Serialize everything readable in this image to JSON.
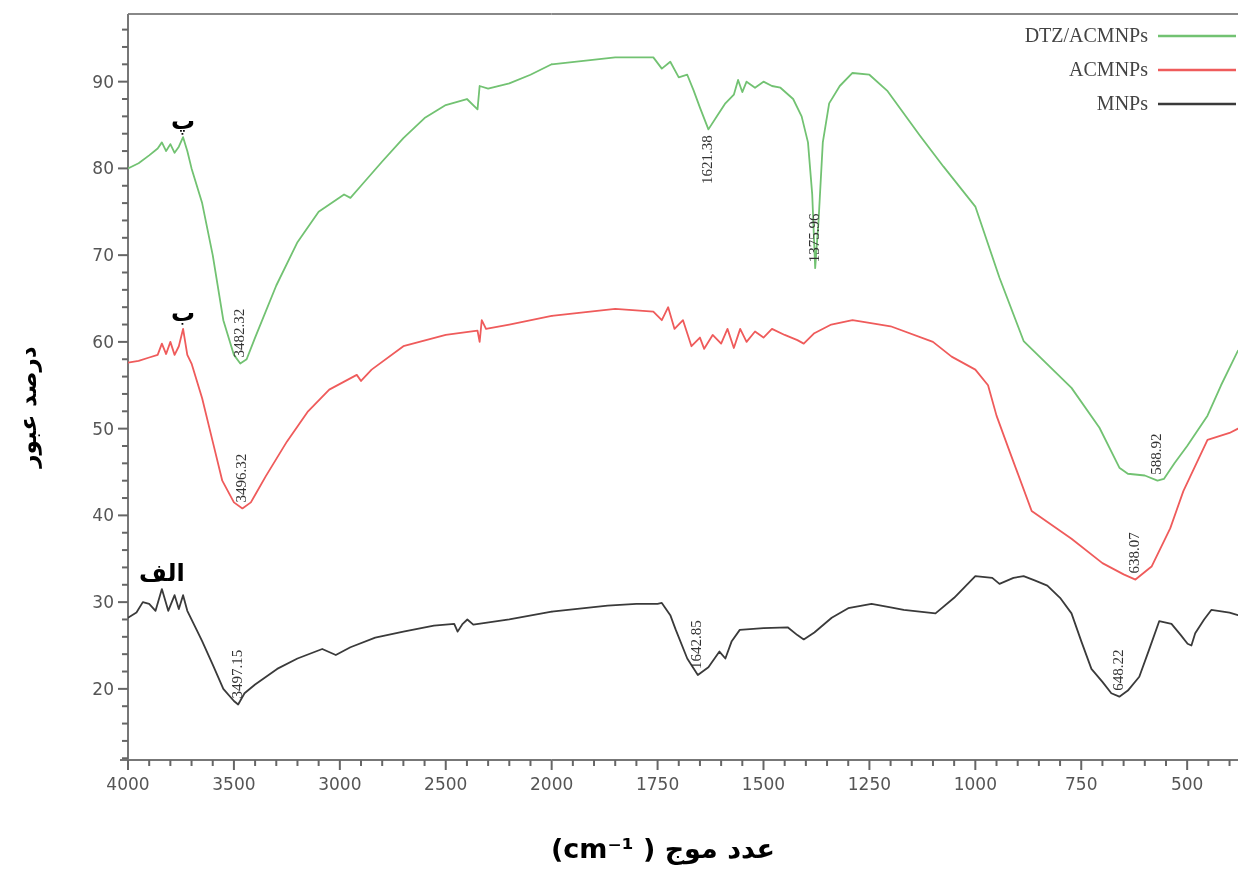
{
  "chart_data": [
    {
      "type": "line",
      "ylabel": "درصد عبور",
      "xlim": [
        4000,
        2000
      ],
      "ylim": [
        11.8,
        97.8
      ],
      "xticks": [
        4000,
        {
          "value": 3900,
          "label": null
        },
        {
          "value": 3800,
          "label": null
        },
        {
          "value": 3700,
          "label": null
        },
        {
          "value": 3600,
          "label": null
        },
        3500,
        {
          "value": 3400,
          "label": null
        },
        {
          "value": 3300,
          "label": null
        },
        {
          "value": 3200,
          "label": null
        },
        {
          "value": 3100,
          "label": null
        },
        3000,
        {
          "value": 2900,
          "label": null
        },
        {
          "value": 2800,
          "label": null
        },
        {
          "value": 2700,
          "label": null
        },
        {
          "value": 2600,
          "label": null
        },
        2500,
        {
          "value": 2400,
          "label": null
        },
        {
          "value": 2300,
          "label": null
        },
        {
          "value": 2200,
          "label": null
        },
        {
          "value": 2100,
          "label": null
        },
        2000
      ],
      "yticks": [
        {
          "value": 12,
          "label": null
        },
        {
          "value": 14,
          "label": null
        },
        {
          "value": 16,
          "label": null
        },
        {
          "value": 18,
          "label": null
        },
        20,
        {
          "value": 22,
          "label": null
        },
        {
          "value": 24,
          "label": null
        },
        {
          "value": 26,
          "label": null
        },
        {
          "value": 28,
          "label": null
        },
        30,
        {
          "value": 32,
          "label": null
        },
        {
          "value": 34,
          "label": null
        },
        {
          "value": 36,
          "label": null
        },
        {
          "value": 38,
          "label": null
        },
        40,
        {
          "value": 42,
          "label": null
        },
        {
          "value": 44,
          "label": null
        },
        {
          "value": 46,
          "label": null
        },
        {
          "value": 48,
          "label": null
        },
        50,
        {
          "value": 52,
          "label": null
        },
        {
          "value": 54,
          "label": null
        },
        {
          "value": 56,
          "label": null
        },
        {
          "value": 58,
          "label": null
        },
        60,
        {
          "value": 62,
          "label": null
        },
        {
          "value": 64,
          "label": null
        },
        {
          "value": 66,
          "label": null
        },
        {
          "value": 68,
          "label": null
        },
        70,
        {
          "value": 72,
          "label": null
        },
        {
          "value": 74,
          "label": null
        },
        {
          "value": 76,
          "label": null
        },
        {
          "value": 78,
          "label": null
        },
        80,
        {
          "value": 82,
          "label": null
        },
        {
          "value": 84,
          "label": null
        },
        {
          "value": 86,
          "label": null
        },
        {
          "value": 88,
          "label": null
        },
        90,
        {
          "value": 92,
          "label": null
        },
        {
          "value": 94,
          "label": null
        },
        {
          "value": 96,
          "label": null
        }
      ],
      "grid": false,
      "marker": "none",
      "line_style": "solid",
      "series": [
        {
          "color": "#72c272",
          "x": [
            4000,
            3950,
            3900,
            3860,
            3840,
            3820,
            3800,
            3780,
            3760,
            3740,
            3720,
            3700,
            3650,
            3600,
            3550,
            3500,
            3470,
            3440,
            3400,
            3300,
            3200,
            3100,
            2980,
            2950,
            2900,
            2800,
            2700,
            2600,
            2500,
            2400,
            2350,
            2340,
            2300,
            2200,
            2100,
            2000
          ],
          "values": [
            80,
            80.6,
            81.5,
            82.3,
            83,
            82,
            82.8,
            81.8,
            82.5,
            83.6,
            82,
            80,
            76,
            70,
            62.5,
            58.5,
            57.5,
            58,
            60.5,
            66.5,
            71.5,
            75,
            77,
            76.6,
            78,
            80.8,
            83.5,
            85.8,
            87.3,
            88,
            86.8,
            89.5,
            89.2,
            89.8,
            90.8,
            92
          ]
        },
        {
          "color": "#ef5b5b",
          "x": [
            4000,
            3950,
            3900,
            3860,
            3840,
            3820,
            3800,
            3780,
            3760,
            3740,
            3720,
            3700,
            3650,
            3600,
            3555,
            3500,
            3460,
            3420,
            3350,
            3250,
            3150,
            3050,
            2920,
            2900,
            2850,
            2700,
            2500,
            2350,
            2340,
            2330,
            2310,
            2200,
            2000
          ],
          "values": [
            57.6,
            57.8,
            58.2,
            58.5,
            59.8,
            58.6,
            60,
            58.5,
            59.5,
            61.5,
            58.5,
            57.5,
            53.5,
            48.5,
            44,
            41.5,
            40.8,
            41.5,
            44.5,
            48.5,
            52,
            54.5,
            56.2,
            55.5,
            56.8,
            59.5,
            60.8,
            61.3,
            60,
            62.5,
            61.5,
            62,
            63
          ]
        },
        {
          "color": "#3a3a3a",
          "x": [
            4000,
            3960,
            3930,
            3900,
            3870,
            3840,
            3810,
            3780,
            3760,
            3740,
            3720,
            3680,
            3650,
            3600,
            3550,
            3500,
            3480,
            3450,
            3400,
            3296,
            3200,
            3083,
            3019,
            2950,
            2833,
            2700,
            2556,
            2460,
            2444,
            2420,
            2398,
            2370,
            2200,
            2000
          ],
          "values": [
            28.2,
            28.8,
            30,
            29.8,
            29,
            31.5,
            29,
            30.8,
            29.2,
            30.8,
            29,
            27,
            25.5,
            22.8,
            20,
            18.6,
            18.2,
            19.5,
            20.5,
            22.3,
            23.5,
            24.6,
            23.9,
            24.8,
            25.9,
            26.6,
            27.3,
            27.5,
            26.6,
            27.5,
            28,
            27.4,
            28,
            28.9
          ]
        }
      ],
      "annotations": [
        {
          "text": "پ",
          "x": 3740,
          "y": 83.6
        },
        {
          "text": "ب",
          "x": 3740,
          "y": 61.5
        },
        {
          "text": "الف",
          "x": 3840,
          "y": 31.5
        },
        {
          "text": "3482.32",
          "x": 3470,
          "y": 57.5
        },
        {
          "text": "3496.32",
          "x": 3460,
          "y": 40.8
        },
        {
          "text": "3497.15",
          "x": 3480,
          "y": 18.2
        }
      ]
    },
    {
      "type": "line",
      "xlabel": "عدد موج ( cm⁻¹)",
      "xlim": [
        2000,
        380
      ],
      "ylim": [
        11.8,
        97.8
      ],
      "tick_labels": "x",
      "xticks": [
        {
          "value": 1950,
          "label": null
        },
        {
          "value": 1900,
          "label": null
        },
        {
          "value": 1850,
          "label": null
        },
        {
          "value": 1800,
          "label": null
        },
        1750,
        {
          "value": 1700,
          "label": null
        },
        {
          "value": 1650,
          "label": null
        },
        {
          "value": 1600,
          "label": null
        },
        {
          "value": 1550,
          "label": null
        },
        1500,
        {
          "value": 1450,
          "label": null
        },
        {
          "value": 1400,
          "label": null
        },
        {
          "value": 1350,
          "label": null
        },
        {
          "value": 1300,
          "label": null
        },
        1250,
        {
          "value": 1200,
          "label": null
        },
        {
          "value": 1150,
          "label": null
        },
        {
          "value": 1100,
          "label": null
        },
        {
          "value": 1050,
          "label": null
        },
        1000,
        {
          "value": 950,
          "label": null
        },
        {
          "value": 900,
          "label": null
        },
        {
          "value": 850,
          "label": null
        },
        {
          "value": 800,
          "label": null
        },
        750,
        {
          "value": 700,
          "label": null
        },
        {
          "value": 650,
          "label": null
        },
        {
          "value": 600,
          "label": null
        },
        {
          "value": 550,
          "label": null
        },
        500,
        {
          "value": 450,
          "label": null
        },
        {
          "value": 400,
          "label": null
        }
      ],
      "grid": false,
      "legend": "top right",
      "marker": "none",
      "line_style": "solid",
      "series": [
        {
          "name": "DTZ/ACMNPs",
          "color": "#72c272",
          "x": [
            2000,
            1850,
            1760,
            1740,
            1720,
            1700,
            1680,
            1665,
            1650,
            1630,
            1610,
            1590,
            1570,
            1560,
            1550,
            1540,
            1520,
            1500,
            1480,
            1460,
            1430,
            1410,
            1395,
            1385,
            1378,
            1370,
            1360,
            1345,
            1320,
            1290,
            1250,
            1207,
            1131,
            1075,
            1000,
            943,
            886,
            773,
            707,
            660,
            640,
            600,
            570,
            555,
            530,
            500,
            452,
            420,
            380
          ],
          "values": [
            92,
            92.8,
            92.8,
            91.5,
            92.3,
            90.5,
            90.8,
            89,
            87,
            84.5,
            86,
            87.5,
            88.5,
            90.2,
            88.8,
            90,
            89.3,
            90,
            89.5,
            89.3,
            88,
            86,
            83,
            77,
            68.5,
            74,
            83,
            87.5,
            89.5,
            91,
            90.8,
            88.9,
            83.8,
            80.2,
            75.6,
            67.4,
            60.1,
            54.7,
            50.1,
            45.5,
            44.8,
            44.6,
            44,
            44.2,
            46,
            48,
            51.5,
            55,
            59
          ]
        },
        {
          "name": "ACMNPs",
          "color": "#ef5b5b",
          "x": [
            2000,
            1850,
            1760,
            1740,
            1725,
            1710,
            1690,
            1670,
            1650,
            1640,
            1620,
            1600,
            1585,
            1570,
            1555,
            1540,
            1520,
            1500,
            1480,
            1450,
            1420,
            1405,
            1380,
            1340,
            1290,
            1250,
            1200,
            1100,
            1056,
            1000,
            970,
            950,
            920,
            867,
            773,
            700,
            650,
            622,
            584,
            540,
            509,
            452,
            400,
            380
          ],
          "values": [
            63,
            63.8,
            63.5,
            62.5,
            64,
            61.5,
            62.5,
            59.5,
            60.5,
            59.2,
            60.8,
            59.8,
            61.5,
            59.3,
            61.5,
            60,
            61.2,
            60.5,
            61.5,
            60.8,
            60.2,
            59.8,
            61,
            62,
            62.5,
            62.2,
            61.8,
            60,
            58.3,
            56.8,
            55,
            51.5,
            47.5,
            40.5,
            37.3,
            34.5,
            33.2,
            32.6,
            34.1,
            38.5,
            42.8,
            48.7,
            49.5,
            50
          ]
        },
        {
          "name": "MNPs",
          "color": "#3a3a3a",
          "x": [
            2000,
            1868,
            1800,
            1750,
            1740,
            1720,
            1707,
            1680,
            1655,
            1630,
            1604,
            1590,
            1575,
            1556,
            1500,
            1443,
            1420,
            1405,
            1380,
            1339,
            1300,
            1245,
            1200,
            1169,
            1094,
            1050,
            1000,
            960,
            943,
            910,
            886,
            860,
            830,
            800,
            773,
            750,
            726,
            700,
            679,
            660,
            640,
            613,
            590,
            566,
            537,
            515,
            499,
            490,
            481,
            460,
            443,
            400,
            380
          ],
          "values": [
            28.9,
            29.6,
            29.8,
            29.8,
            29.9,
            28.5,
            26.8,
            23.5,
            21.6,
            22.5,
            24.3,
            23.5,
            25.5,
            26.8,
            27,
            27.1,
            26.2,
            25.7,
            26.5,
            28.2,
            29.3,
            29.8,
            29.4,
            29.1,
            28.7,
            30.5,
            33,
            32.8,
            32.1,
            32.8,
            33,
            32.5,
            31.9,
            30.5,
            28.7,
            25.5,
            22.3,
            20.8,
            19.5,
            19.1,
            19.8,
            21.4,
            24.5,
            27.8,
            27.5,
            26.2,
            25.2,
            25,
            26.4,
            28,
            29.1,
            28.8,
            28.5
          ]
        }
      ],
      "annotations": [
        {
          "text": "1621.38",
          "x": 1630,
          "y": 84.5
        },
        {
          "text": "1375.96",
          "x": 1378,
          "y": 68.5
        },
        {
          "text": "588.92",
          "x": 570,
          "y": 44
        },
        {
          "text": "638.07",
          "x": 622,
          "y": 32.6
        },
        {
          "text": "1642.85",
          "x": 1655,
          "y": 21.6
        },
        {
          "text": "648.22",
          "x": 660,
          "y": 19.1
        }
      ]
    }
  ]
}
